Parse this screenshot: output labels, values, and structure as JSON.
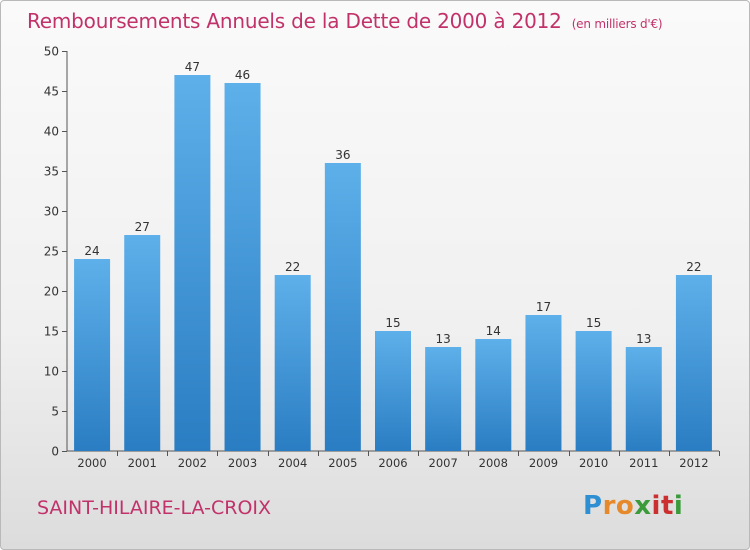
{
  "title": "Remboursements Annuels de la Dette de 2000 à 2012",
  "unit": "(en milliers d'€)",
  "commune": "SAINT-HILAIRE-LA-CROIX",
  "logo": {
    "letters": [
      "P",
      "r",
      "o",
      "x",
      "i",
      "t",
      "i"
    ],
    "colors": [
      "#2e8fd3",
      "#e5892a",
      "#e5892a",
      "#3b9b3b",
      "#cc2f2f",
      "#cc2f2f",
      "#3b9b3b"
    ]
  },
  "colors": {
    "title": "#c2326a",
    "bar_top": "#5eb0ea",
    "bar_bottom": "#2a7dc2"
  },
  "chart_data": {
    "type": "bar",
    "categories": [
      "2000",
      "2001",
      "2002",
      "2003",
      "2004",
      "2005",
      "2006",
      "2007",
      "2008",
      "2009",
      "2010",
      "2011",
      "2012"
    ],
    "values": [
      24,
      27,
      47,
      46,
      22,
      36,
      15,
      13,
      14,
      17,
      15,
      13,
      22
    ],
    "ylim": [
      0,
      50
    ],
    "yticks": [
      0,
      5,
      10,
      15,
      20,
      25,
      30,
      35,
      40,
      45,
      50
    ],
    "grid": false
  }
}
